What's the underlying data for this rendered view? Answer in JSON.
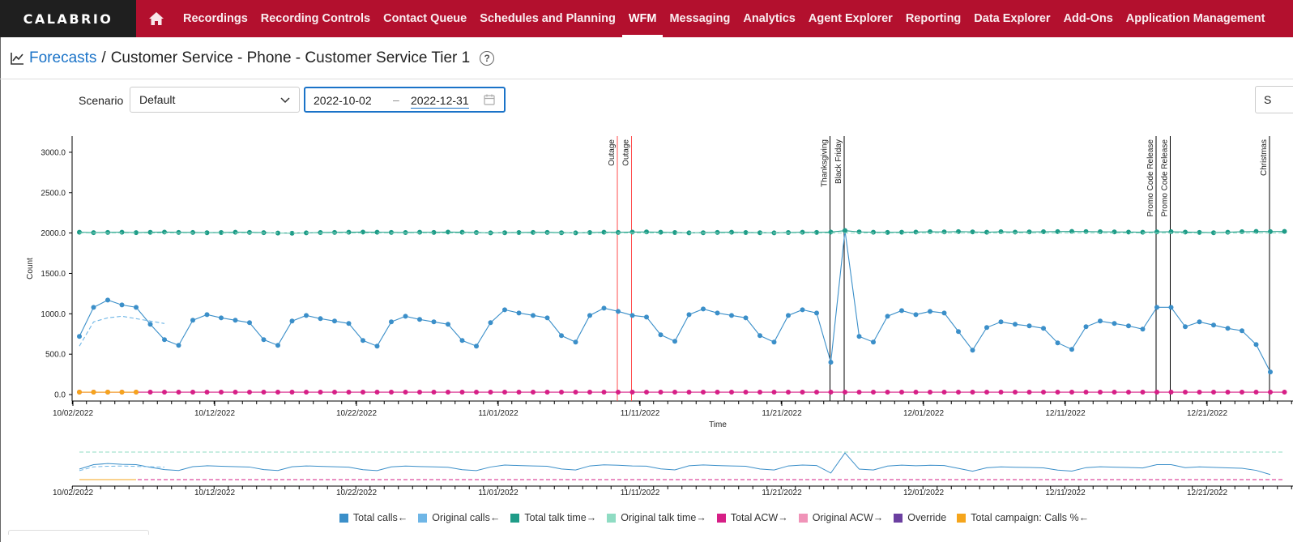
{
  "app": {
    "logo": "CALABRIO"
  },
  "nav": {
    "items": [
      {
        "label": "Recordings"
      },
      {
        "label": "Recording Controls"
      },
      {
        "label": "Contact Queue"
      },
      {
        "label": "Schedules and Planning"
      },
      {
        "label": "WFM",
        "active": true
      },
      {
        "label": "Messaging"
      },
      {
        "label": "Analytics"
      },
      {
        "label": "Agent Explorer"
      },
      {
        "label": "Reporting"
      },
      {
        "label": "Data Explorer"
      },
      {
        "label": "Add-Ons"
      },
      {
        "label": "Application Management"
      }
    ]
  },
  "breadcrumb": {
    "link": "Forecasts",
    "separator": "/",
    "current": "Customer Service - Phone - Customer Service Tier 1",
    "help_icon": "question-circle-icon"
  },
  "controls": {
    "scenario_label": "Scenario",
    "scenario_value": "Default",
    "date_start": "2022-10-02",
    "date_sep": "–",
    "date_end": "2022-12-31",
    "right_button": "S"
  },
  "colors": {
    "total_calls": "#3b8fc9",
    "original_calls": "#6fb6e6",
    "total_talk": "#1f9c88",
    "original_talk": "#8fdcc3",
    "total_acw": "#d61f86",
    "original_acw": "#f093b8",
    "override": "#6b3fa0",
    "campaign": "#f5a51c",
    "outage": "#ff4d4d",
    "event": "#000000"
  },
  "chart_data": {
    "type": "line",
    "ylabel": "Count",
    "xlabel": "Time",
    "y_ticks": [
      "0.0",
      "500.0",
      "1000.0",
      "1500.0",
      "2000.0",
      "2500.0",
      "3000.0"
    ],
    "ylim": [
      -80,
      3200
    ],
    "x_ticks": [
      "10/02/2022",
      "10/12/2022",
      "10/22/2022",
      "11/01/2022",
      "11/11/2022",
      "11/21/2022",
      "12/01/2022",
      "12/11/2022",
      "12/21/2022"
    ],
    "x_start": "2022-10-02",
    "events": [
      {
        "label": "Outage",
        "date": "2022-11-09",
        "kind": "outage"
      },
      {
        "label": "Outage",
        "date": "2022-11-10",
        "kind": "outage"
      },
      {
        "label": "Thanksgiving",
        "date": "2022-11-24",
        "kind": "event"
      },
      {
        "label": "Black Friday",
        "date": "2022-11-25",
        "kind": "event"
      },
      {
        "label": "Promo Code Release",
        "date": "2022-12-17",
        "kind": "event"
      },
      {
        "label": "Promo Code Release",
        "date": "2022-12-18",
        "kind": "event"
      },
      {
        "label": "Christmas",
        "date": "2022-12-25",
        "kind": "event"
      }
    ],
    "series": [
      {
        "name": "Total calls←",
        "key": "total_calls",
        "style": "solid",
        "values": [
          720,
          1080,
          1170,
          1110,
          1080,
          870,
          680,
          610,
          920,
          990,
          950,
          920,
          890,
          680,
          610,
          910,
          980,
          940,
          910,
          880,
          670,
          600,
          900,
          970,
          930,
          900,
          870,
          670,
          600,
          890,
          1050,
          1010,
          980,
          950,
          730,
          650,
          980,
          1070,
          1030,
          980,
          960,
          740,
          660,
          990,
          1060,
          1010,
          980,
          950,
          730,
          650,
          980,
          1050,
          1010,
          400,
          2030,
          720,
          650,
          970,
          1040,
          990,
          1030,
          1010,
          780,
          550,
          830,
          900,
          870,
          850,
          820,
          640,
          560,
          840,
          910,
          880,
          850,
          810,
          1080,
          1080,
          840,
          900,
          860,
          820,
          790,
          620,
          280
        ]
      },
      {
        "name": "Original calls←",
        "key": "original_calls",
        "style": "dashed",
        "values": [
          600,
          900,
          950,
          970,
          940,
          910,
          880
        ]
      },
      {
        "name": "Total talk time→",
        "key": "total_talk",
        "style": "solid",
        "values": [
          2010,
          2005,
          2008,
          2010,
          2005,
          2009,
          2012,
          2008,
          2007,
          2004,
          2006,
          2010,
          2008,
          2005,
          2000,
          1998,
          2002,
          2006,
          2008,
          2010,
          2012,
          2010,
          2008,
          2006,
          2010,
          2008,
          2012,
          2010,
          2006,
          2002,
          2004,
          2006,
          2008,
          2008,
          2004,
          2002,
          2006,
          2010,
          2008,
          2012,
          2014,
          2010,
          2006,
          2002,
          2004,
          2008,
          2010,
          2006,
          2004,
          2002,
          2006,
          2010,
          2008,
          2012,
          2030,
          2014,
          2010,
          2008,
          2010,
          2012,
          2016,
          2014,
          2018,
          2014,
          2010,
          2016,
          2012,
          2014,
          2016,
          2018,
          2020,
          2018,
          2016,
          2014,
          2012,
          2010,
          2014,
          2016,
          2012,
          2008,
          2004,
          2010,
          2016,
          2020,
          2018,
          2020
        ]
      },
      {
        "name": "Original talk time→",
        "key": "original_talk",
        "style": "dashed",
        "values": [
          2000,
          2000,
          2000,
          2000,
          2000,
          2000,
          2000,
          2000,
          2000,
          2000,
          2000,
          2000,
          2000,
          2000,
          2000,
          2000,
          2000,
          2000,
          2000,
          2000,
          2000,
          2000,
          2000,
          2000,
          2000,
          2000,
          2000,
          2000,
          2000,
          2000,
          2000,
          2000,
          2000,
          2000,
          2000,
          2000,
          2000,
          2000,
          2000,
          2000,
          2000,
          2000,
          2000,
          2000,
          2000,
          2000,
          2000,
          2000,
          2000,
          2000,
          2000,
          2000,
          2000,
          2000,
          2000,
          2000,
          2000,
          2000,
          2000,
          2000,
          2000,
          2000,
          2000,
          2000,
          2000,
          2000,
          2000,
          2000,
          2000,
          2000,
          2000,
          2000,
          2000,
          2000,
          2000,
          2000,
          2000,
          2000,
          2000,
          2000,
          2000,
          2000,
          2000,
          2000,
          2000,
          2000
        ]
      },
      {
        "name": "Total ACW→",
        "key": "total_acw",
        "style": "solid",
        "values": [
          30,
          30,
          30,
          30,
          30,
          30,
          30,
          30,
          30,
          30,
          30,
          30,
          30,
          30,
          30,
          30,
          30,
          30,
          30,
          30,
          30,
          30,
          30,
          30,
          30,
          30,
          30,
          30,
          30,
          30,
          30,
          30,
          30,
          30,
          30,
          30,
          30,
          30,
          30,
          30,
          30,
          30,
          30,
          30,
          30,
          30,
          30,
          30,
          30,
          30,
          30,
          30,
          30,
          30,
          30,
          30,
          30,
          30,
          30,
          30,
          30,
          30,
          30,
          30,
          30,
          30,
          30,
          30,
          30,
          30,
          30,
          30,
          30,
          30,
          30,
          30,
          30,
          30,
          30,
          30,
          30,
          30,
          30,
          30,
          30,
          30
        ]
      },
      {
        "name": "Original ACW→",
        "key": "original_acw",
        "style": "dashed",
        "values": []
      },
      {
        "name": "Override",
        "key": "override",
        "style": "solid",
        "values": []
      },
      {
        "name": "Total campaign: Calls %←",
        "key": "campaign",
        "style": "solid",
        "values": [
          30,
          30,
          30,
          30,
          30
        ]
      }
    ],
    "legend_position": "bottom",
    "grid": false
  }
}
